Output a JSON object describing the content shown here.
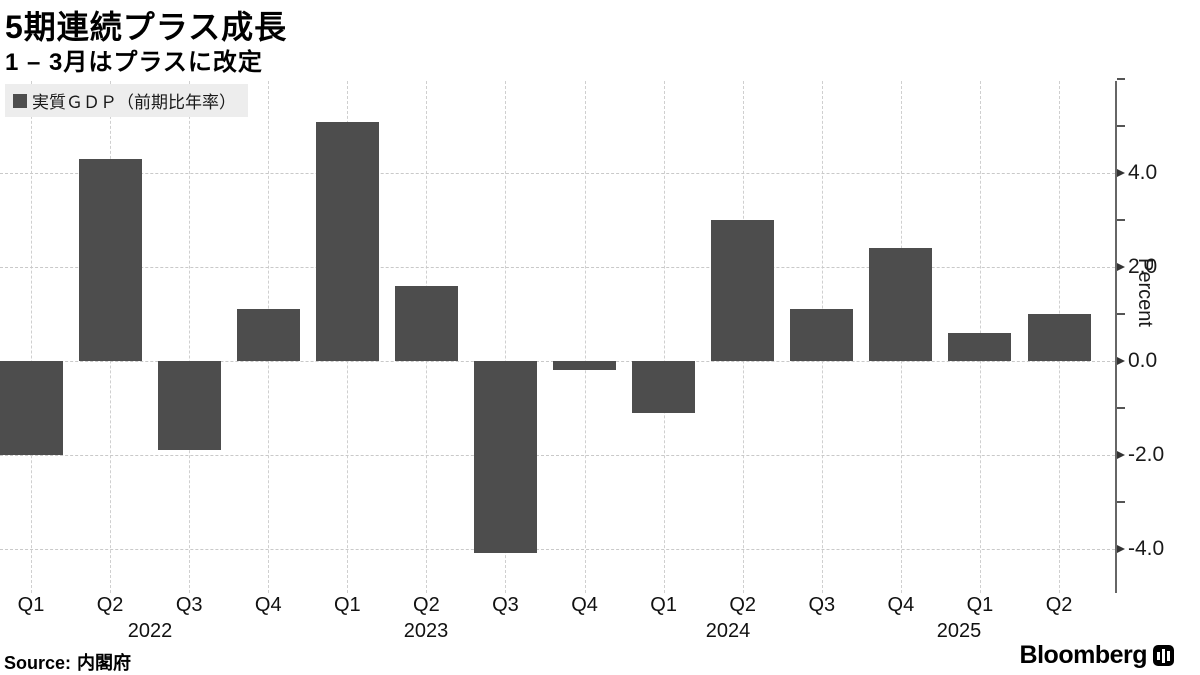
{
  "header": {
    "title": "5期連続プラス成長",
    "subtitle": "1 – 3月はプラスに改定"
  },
  "legend": {
    "label": "実質ＧＤＰ（前期比年率）",
    "marker_color": "#4d4d4d"
  },
  "source": {
    "prefix": "Source:",
    "text": "内閣府"
  },
  "branding": {
    "logo_text": "Bloomberg",
    "logo_mark": "chart-bars-icon"
  },
  "chart_data": {
    "type": "bar",
    "title": "5期連続プラス成長",
    "subtitle": "1 – 3月はプラスに改定",
    "series_name": "実質ＧＤＰ（前期比年率）",
    "categories": [
      "2022 Q1",
      "2022 Q2",
      "2022 Q3",
      "2022 Q4",
      "2023 Q1",
      "2023 Q2",
      "2023 Q3",
      "2023 Q4",
      "2024 Q1",
      "2024 Q2",
      "2024 Q3",
      "2024 Q4",
      "2025 Q1",
      "2025 Q2"
    ],
    "quarter_tick_labels": [
      "Q1",
      "Q2",
      "Q3",
      "Q4",
      "Q1",
      "Q2",
      "Q3",
      "Q4",
      "Q1",
      "Q2",
      "Q3",
      "Q4",
      "Q1",
      "Q2"
    ],
    "year_labels": [
      "2022",
      "2023",
      "2024",
      "2025"
    ],
    "values": [
      -2.0,
      4.3,
      -1.9,
      1.1,
      5.1,
      1.6,
      -4.1,
      -0.2,
      -1.1,
      3.0,
      1.1,
      2.4,
      0.6,
      1.0
    ],
    "xlabel": "",
    "ylabel": "Percent",
    "ylim": [
      -5.0,
      6.0
    ],
    "yticks_major": [
      4.0,
      2.0,
      0.0,
      -2.0,
      -4.0
    ],
    "ytick_labels": [
      "4.0",
      "2.0",
      "0.0",
      "-2.0",
      "-4.0"
    ],
    "yticks_minor": [
      6.0,
      5.0,
      3.0,
      1.0,
      -1.0,
      -3.0
    ],
    "bar_color": "#4d4d4d",
    "grid": "dashed gray; horizontal at major yticks, vertical at each bar center",
    "legend_position": "top-left",
    "yaxis_position": "right"
  }
}
